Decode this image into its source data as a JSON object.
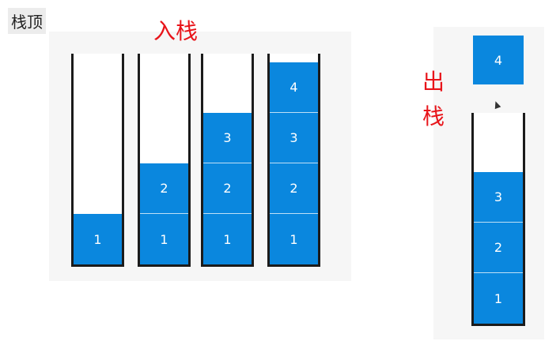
{
  "labels": {
    "stack_top": "栈顶",
    "push": "入栈",
    "pop": "出栈"
  },
  "push_stacks": [
    {
      "items": [
        "1"
      ]
    },
    {
      "items": [
        "1",
        "2"
      ]
    },
    {
      "items": [
        "1",
        "2",
        "3"
      ]
    },
    {
      "items": [
        "1",
        "2",
        "3",
        "4"
      ]
    }
  ],
  "pop_stack": {
    "items": [
      "1",
      "2",
      "3"
    ]
  },
  "popped_item": "4",
  "colors": {
    "cell": "#0a87de",
    "label_red": "#e8141a",
    "wall": "#1b1b1b"
  }
}
